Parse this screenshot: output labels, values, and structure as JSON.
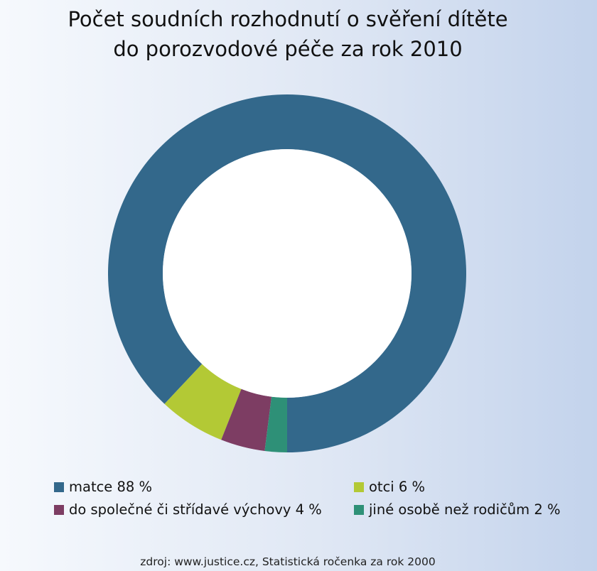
{
  "chart_data": {
    "type": "pie",
    "title_lines": [
      "Počet soudních rozhodnutí o svěření dítěte",
      "do porozvodové péče za rok 2010"
    ],
    "slices": [
      {
        "label": "matce 88 %",
        "value": 88,
        "color": "#33688b"
      },
      {
        "label": "otci 6 %",
        "value": 6,
        "color": "#b3c935"
      },
      {
        "label": "do společné či střídavé výchovy 4 %",
        "value": 4,
        "color": "#7d3d63"
      },
      {
        "label": "jiné osobě než rodičům 2 %",
        "value": 2,
        "color": "#2e9077"
      }
    ],
    "legend_position": "bottom"
  },
  "source": "zdroj: www.justice.cz, Statistická ročenka za rok 2000"
}
